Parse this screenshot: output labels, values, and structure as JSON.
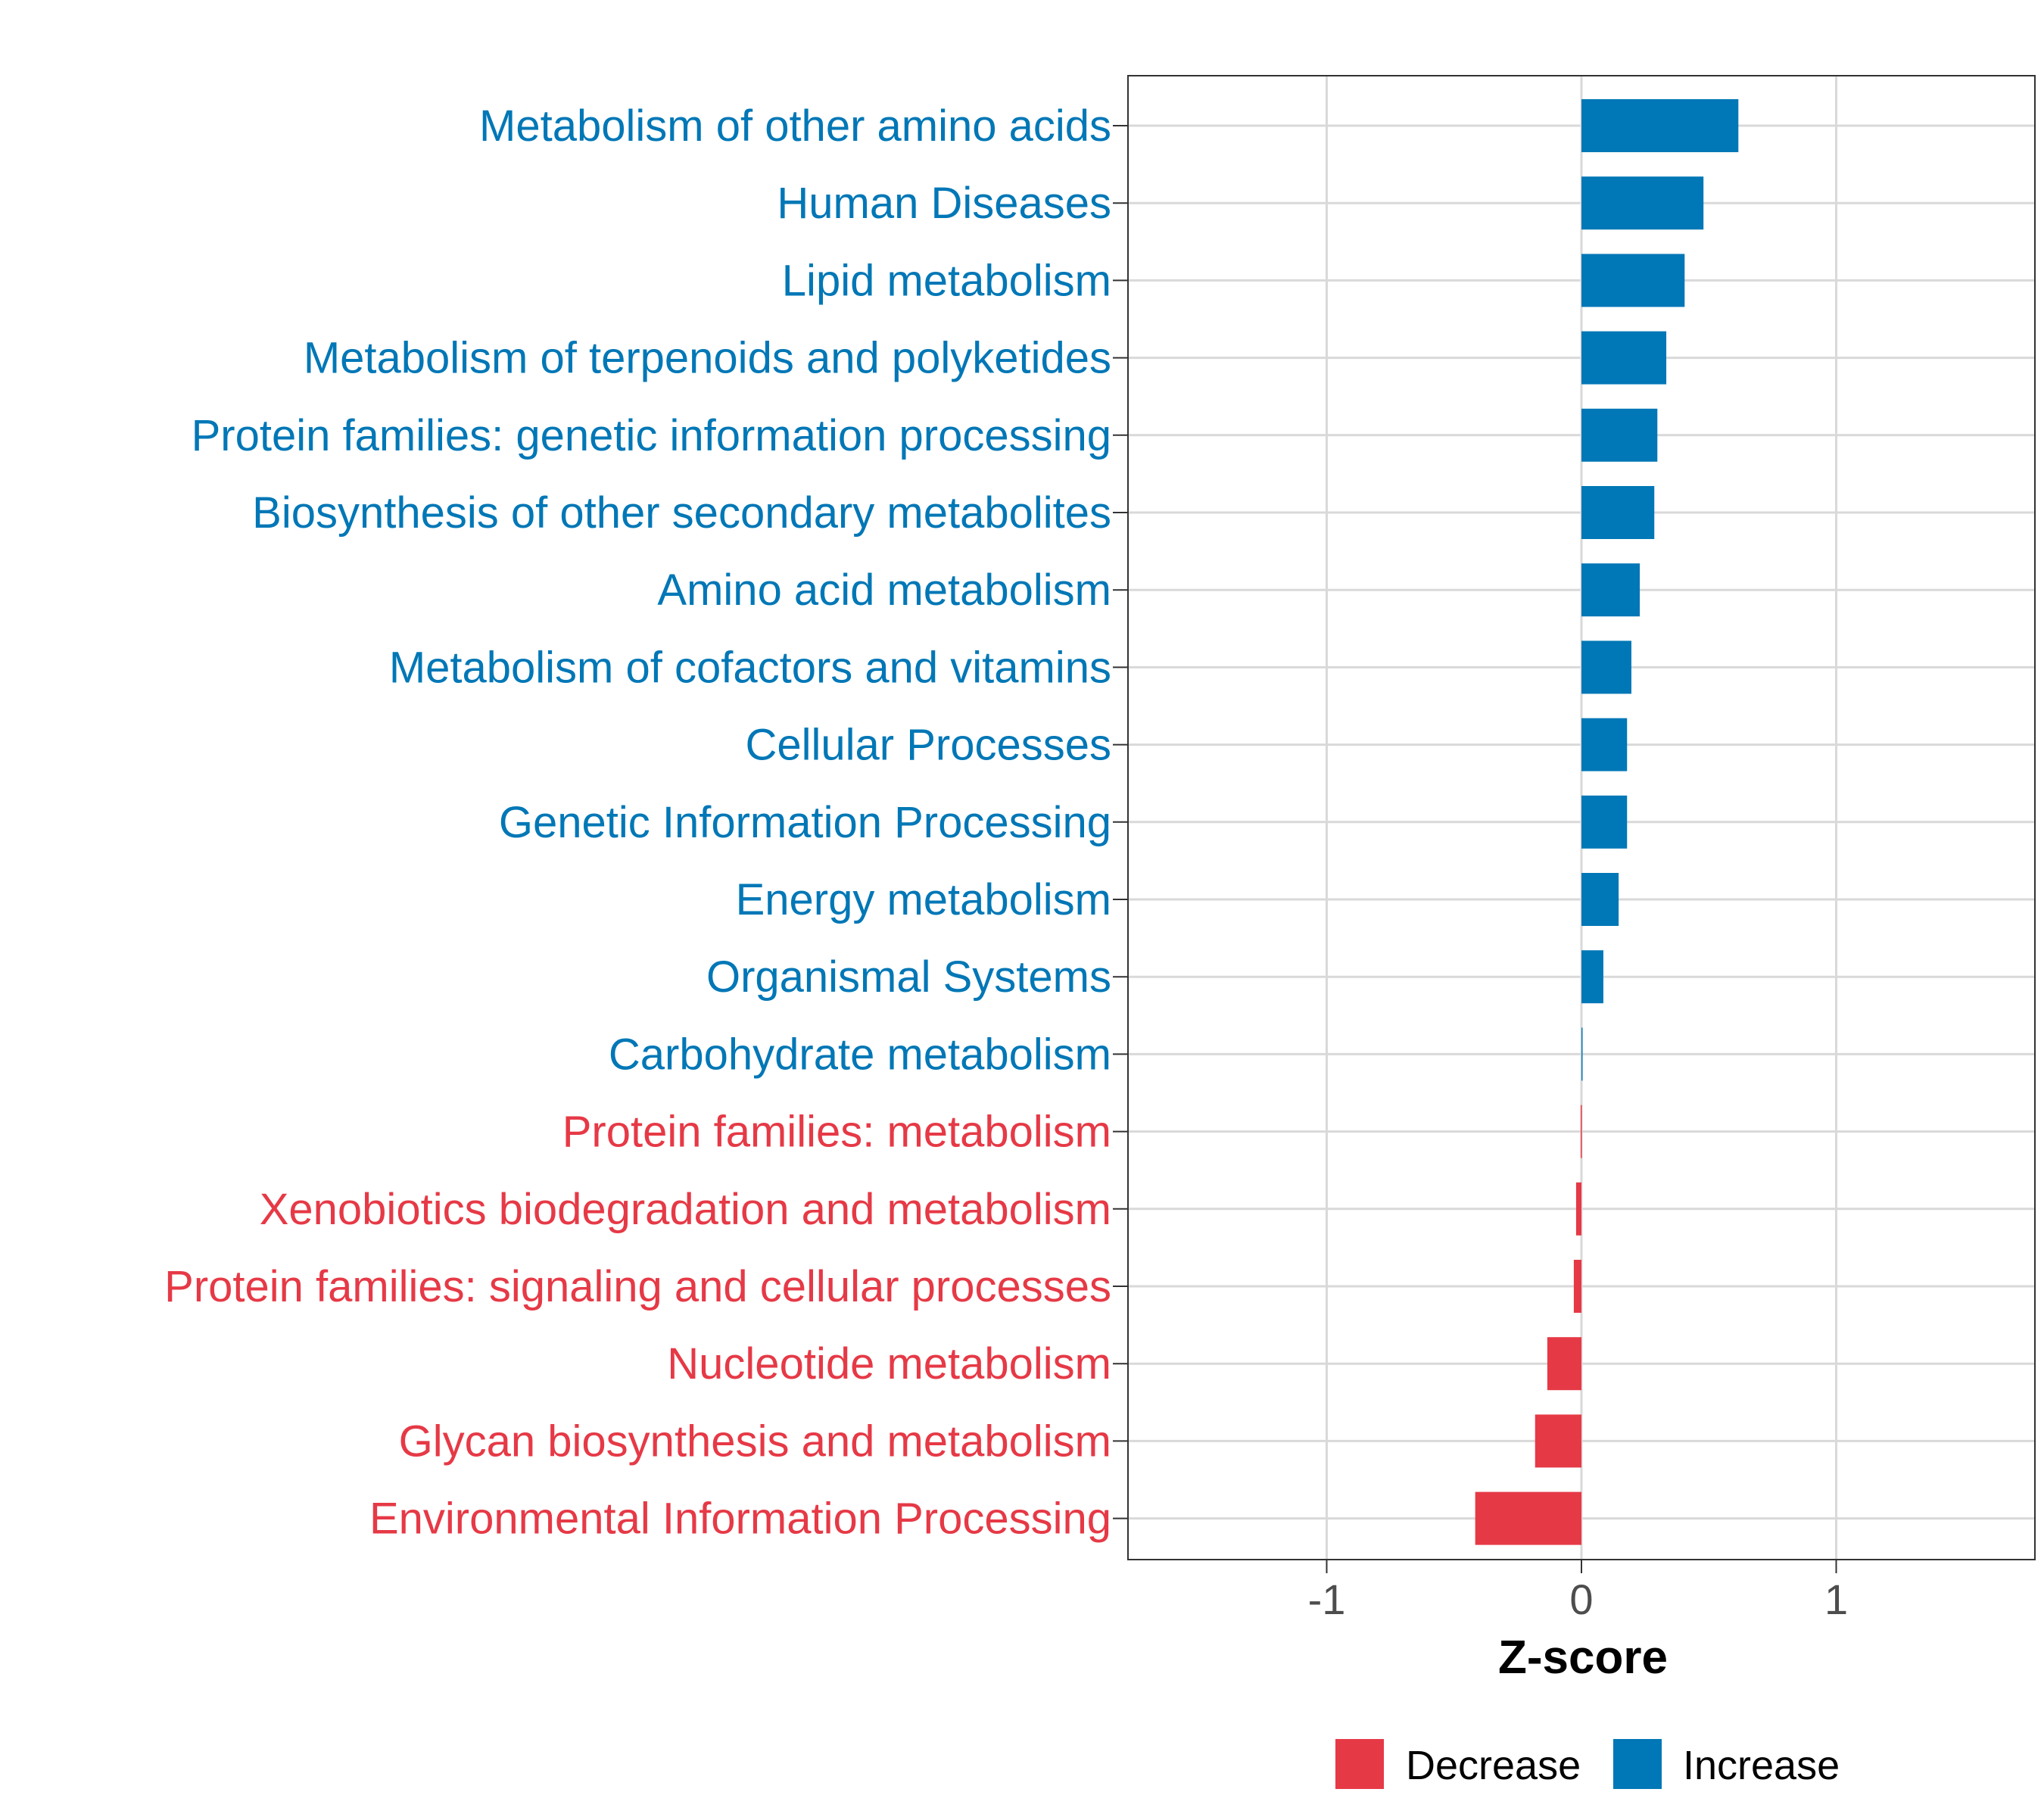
{
  "chart_data": {
    "type": "bar",
    "orientation": "horizontal",
    "title": "",
    "xlabel": "Z-score",
    "ylabel": "",
    "xlim": [
      -1.78,
      1.78
    ],
    "xticks": [
      -1,
      0,
      1
    ],
    "xtick_labels": [
      "-1",
      "0",
      "1"
    ],
    "grid": true,
    "legend_position": "bottom",
    "colors": {
      "Decrease": "#E63946",
      "Increase": "#0077B6"
    },
    "legend": [
      {
        "label": "Decrease",
        "color": "#E63946"
      },
      {
        "label": "Increase",
        "color": "#0077B6"
      }
    ],
    "categories": [
      "Metabolism of other amino acids",
      "Human Diseases",
      "Lipid metabolism",
      "Metabolism of terpenoids and polyketides",
      "Protein families: genetic information processing",
      "Biosynthesis of other secondary metabolites",
      "Amino acid metabolism",
      "Metabolism of cofactors and vitamins",
      "Cellular Processes",
      "Genetic Information Processing",
      "Energy metabolism",
      "Organismal Systems",
      "Carbohydrate metabolism",
      "Protein families: metabolism",
      "Xenobiotics biodegradation and metabolism",
      "Protein families: signaling and cellular processes",
      "Nucleotide metabolism",
      "Glycan biosynthesis and metabolism",
      "Environmental Information Processing"
    ],
    "values": [
      0.616,
      0.479,
      0.405,
      0.333,
      0.298,
      0.286,
      0.229,
      0.196,
      0.179,
      0.179,
      0.146,
      0.086,
      0.004,
      -0.003,
      -0.021,
      -0.03,
      -0.134,
      -0.182,
      -0.417
    ],
    "groups": [
      "Increase",
      "Increase",
      "Increase",
      "Increase",
      "Increase",
      "Increase",
      "Increase",
      "Increase",
      "Increase",
      "Increase",
      "Increase",
      "Increase",
      "Increase",
      "Decrease",
      "Decrease",
      "Decrease",
      "Decrease",
      "Decrease",
      "Decrease"
    ]
  }
}
